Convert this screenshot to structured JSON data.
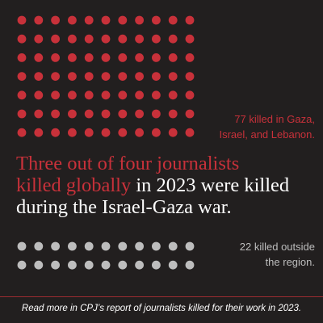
{
  "chart_data": {
    "type": "dot-matrix",
    "series": [
      {
        "name": "77 killed in Gaza, Israel, and Lebanon.",
        "value": 77,
        "color": "#c8313a"
      },
      {
        "name": "22 killed outside the region.",
        "value": 22,
        "color": "#bdbdbd"
      }
    ],
    "columns": 11
  },
  "labels": {
    "red": [
      "77 killed in Gaza,",
      "Israel, and Lebanon."
    ],
    "grey": [
      "22 killed outside",
      "the region."
    ]
  },
  "headline": {
    "line1": "Three out of four journalists",
    "line2_highlight": "killed globally",
    "line2_rest": " in 2023 were killed",
    "line3": "during the Israel-Gaza war."
  },
  "footer": "Read more in CPJ’s report of journalists killed for their work in 2023.",
  "colors": {
    "background": "#221f1f",
    "accent": "#c8313a",
    "muted": "#bdbdbd"
  }
}
